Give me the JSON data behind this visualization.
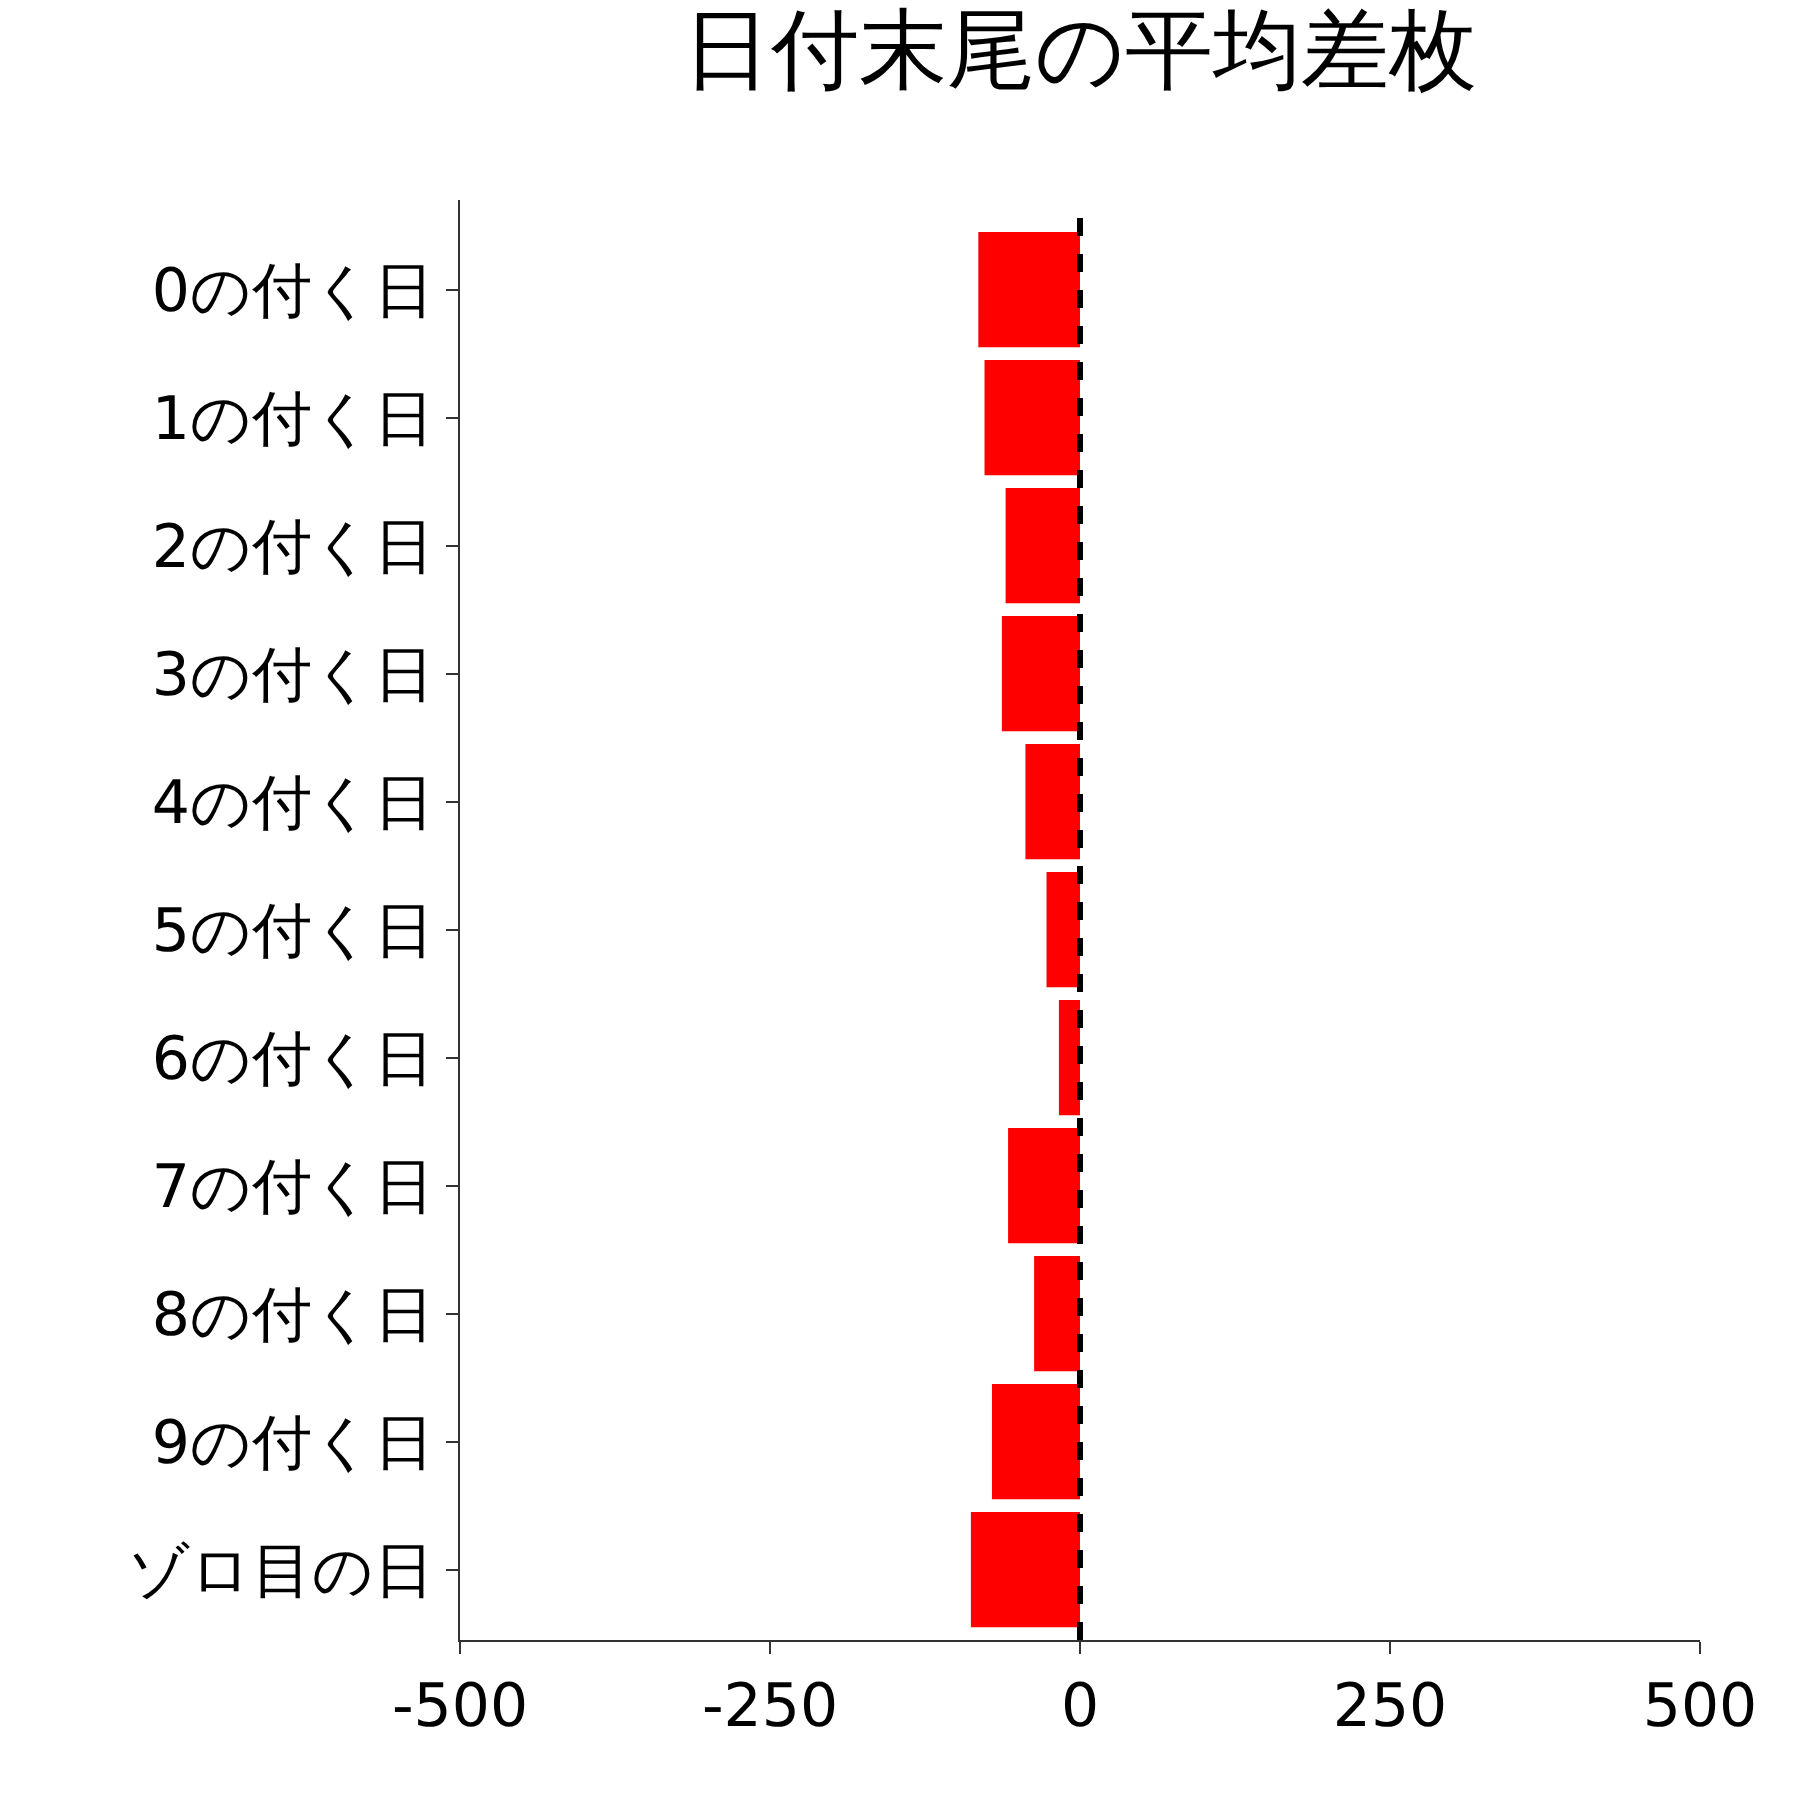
{
  "chart_data": {
    "type": "bar",
    "orientation": "horizontal",
    "title": "日付末尾の平均差枚",
    "categories": [
      "0の付く日",
      "1の付く日",
      "2の付く日",
      "3の付く日",
      "4の付く日",
      "5の付く日",
      "6の付く日",
      "7の付く日",
      "8の付く日",
      "9の付く日",
      "ゾロ目の日"
    ],
    "values": [
      -82,
      -77,
      -60,
      -63,
      -44,
      -27,
      -17,
      -58,
      -37,
      -71,
      -88
    ],
    "color": "#ff0000",
    "xlim": [
      -500,
      500
    ],
    "xticks": [
      -500,
      -250,
      0,
      250,
      500
    ],
    "ref_lines": [
      {
        "axis": "x",
        "value": 0,
        "color": "#000000",
        "line_style": "dashed"
      }
    ],
    "legend": false
  }
}
